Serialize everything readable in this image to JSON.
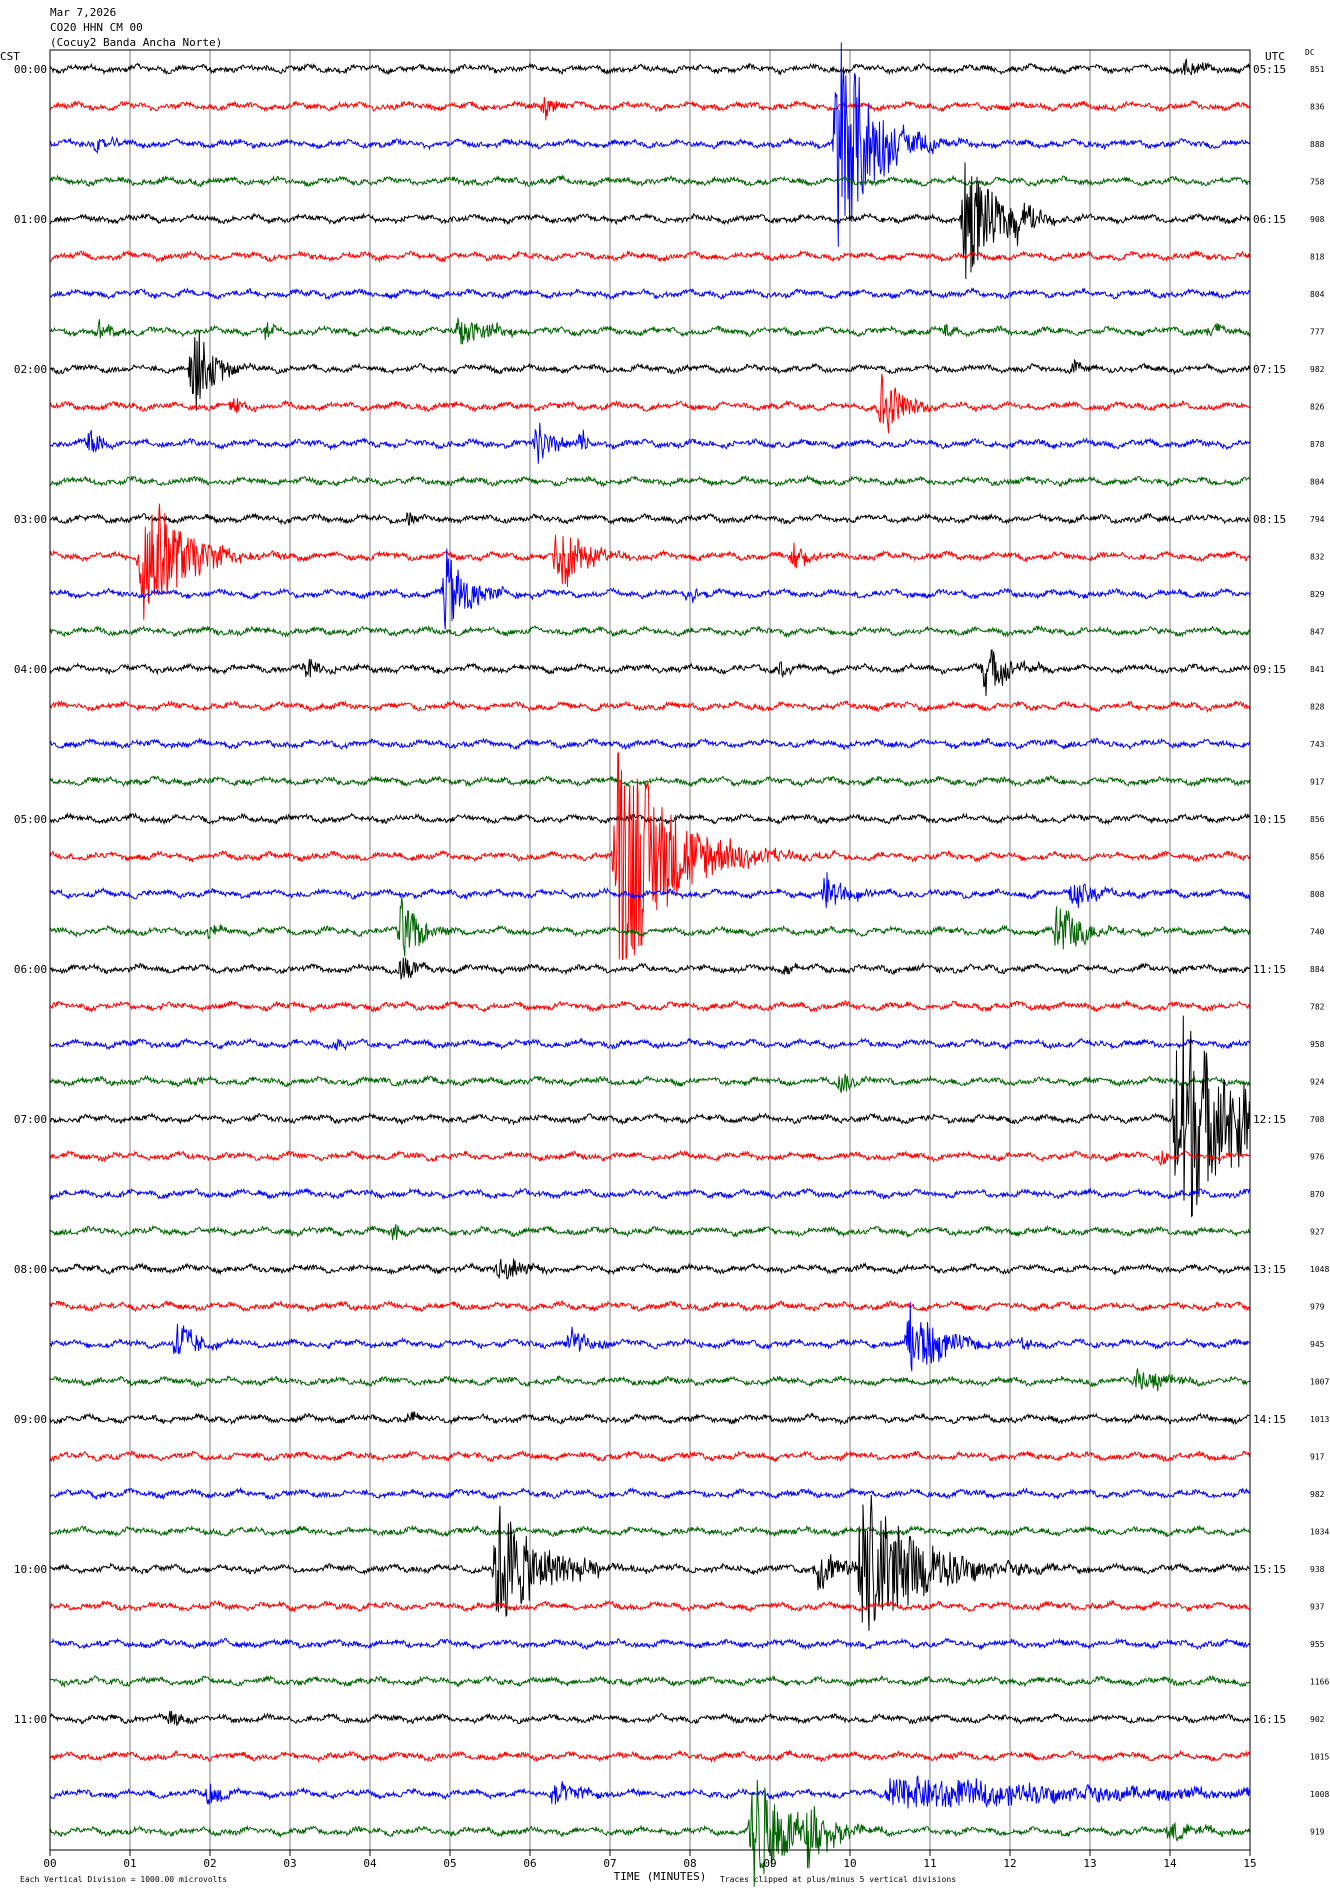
{
  "header": {
    "date": "Mar 7,2026",
    "station": "CO20 HHN CM 00",
    "network": "(Cocuy2 Banda Ancha Norte)"
  },
  "labels": {
    "left_timezone": "CST",
    "right_timezone": "UTC",
    "dc_header": "DC",
    "xlabel": "TIME (MINUTES)",
    "scale_note": "Each Vertical Division = 1000.00 microvolts",
    "clip_note": "Traces clipped at plus/minus 5 vertical divisions"
  },
  "colors": {
    "trace_cycle": [
      "#000000",
      "#ff0000",
      "#0000ff",
      "#006400"
    ],
    "grid": "#808080",
    "frame": "#000000"
  },
  "chart_data": {
    "type": "helicorder",
    "title": "Mar 7,2026 CO20 HHN CM 00 (Cocuy2 Banda Ancha Norte)",
    "xlabel": "TIME (MINUTES)",
    "xlim": [
      0,
      15
    ],
    "x_ticks": [
      "00",
      "01",
      "02",
      "03",
      "04",
      "05",
      "06",
      "07",
      "08",
      "09",
      "10",
      "11",
      "12",
      "13",
      "14",
      "15"
    ],
    "grid": true,
    "rows_per_hour": 4,
    "left_hour_labels": [
      "00:00",
      "01:00",
      "02:00",
      "03:00",
      "04:00",
      "05:00",
      "06:00",
      "07:00",
      "08:00",
      "09:00",
      "10:00",
      "11:00"
    ],
    "right_hour_labels": [
      "05:15",
      "06:15",
      "07:15",
      "08:15",
      "09:15",
      "10:15",
      "11:15",
      "12:15",
      "13:15",
      "14:15",
      "15:15",
      "16:15"
    ],
    "dc_values": [
      "851",
      "836",
      "888",
      "758",
      "908",
      "818",
      "804",
      "777",
      "982",
      "826",
      "878",
      "804",
      "794",
      "832",
      "829",
      "847",
      "841",
      "828",
      "743",
      "917",
      "856",
      "856",
      "808",
      "740",
      "884",
      "782",
      "958",
      "924",
      "708",
      "976",
      "870",
      "927",
      "1048",
      "979",
      "945",
      "1007",
      "1013",
      "917",
      "982",
      "1034",
      "938",
      "937",
      "955",
      "1166",
      "902",
      "1015",
      "1008",
      "919"
    ],
    "events": [
      {
        "row": 0,
        "minute": 14.2,
        "amp": 0.35,
        "dur": 0.3
      },
      {
        "row": 1,
        "minute": 6.2,
        "amp": 0.5,
        "dur": 0.25
      },
      {
        "row": 2,
        "minute": 9.85,
        "amp": 4.5,
        "dur": 0.7
      },
      {
        "row": 2,
        "minute": 10.6,
        "amp": 0.4,
        "dur": 0.3
      },
      {
        "row": 2,
        "minute": 0.6,
        "amp": 0.3,
        "dur": 0.3
      },
      {
        "row": 4,
        "minute": 11.45,
        "amp": 2.4,
        "dur": 0.6
      },
      {
        "row": 4,
        "minute": 12.1,
        "amp": 0.9,
        "dur": 0.3
      },
      {
        "row": 7,
        "minute": 0.6,
        "amp": 0.35,
        "dur": 0.3
      },
      {
        "row": 7,
        "minute": 2.7,
        "amp": 0.3,
        "dur": 0.2
      },
      {
        "row": 7,
        "minute": 5.1,
        "amp": 0.5,
        "dur": 0.8
      },
      {
        "row": 7,
        "minute": 11.2,
        "amp": 0.3,
        "dur": 0.2
      },
      {
        "row": 7,
        "minute": 14.5,
        "amp": 0.3,
        "dur": 0.3
      },
      {
        "row": 8,
        "minute": 1.8,
        "amp": 1.7,
        "dur": 0.4
      },
      {
        "row": 8,
        "minute": 12.8,
        "amp": 0.3,
        "dur": 0.2
      },
      {
        "row": 9,
        "minute": 10.4,
        "amp": 1.3,
        "dur": 0.4
      },
      {
        "row": 9,
        "minute": 2.3,
        "amp": 0.35,
        "dur": 0.2
      },
      {
        "row": 10,
        "minute": 0.5,
        "amp": 0.5,
        "dur": 0.3
      },
      {
        "row": 10,
        "minute": 6.1,
        "amp": 0.8,
        "dur": 0.4
      },
      {
        "row": 10,
        "minute": 6.65,
        "amp": 0.6,
        "dur": 0.1
      },
      {
        "row": 12,
        "minute": 4.5,
        "amp": 0.3,
        "dur": 0.2
      },
      {
        "row": 13,
        "minute": 1.15,
        "amp": 2.9,
        "dur": 0.8
      },
      {
        "row": 13,
        "minute": 6.35,
        "amp": 1.5,
        "dur": 0.5
      },
      {
        "row": 13,
        "minute": 9.3,
        "amp": 0.5,
        "dur": 0.4
      },
      {
        "row": 14,
        "minute": 4.95,
        "amp": 1.6,
        "dur": 0.5
      },
      {
        "row": 14,
        "minute": 8.0,
        "amp": 0.3,
        "dur": 0.2
      },
      {
        "row": 16,
        "minute": 3.2,
        "amp": 0.4,
        "dur": 0.3
      },
      {
        "row": 16,
        "minute": 9.1,
        "amp": 0.35,
        "dur": 0.2
      },
      {
        "row": 16,
        "minute": 11.7,
        "amp": 1.0,
        "dur": 0.5
      },
      {
        "row": 21,
        "minute": 7.1,
        "amp": 5.0,
        "dur": 1.1
      },
      {
        "row": 22,
        "minute": 9.7,
        "amp": 0.7,
        "dur": 0.4
      },
      {
        "row": 22,
        "minute": 12.8,
        "amp": 0.5,
        "dur": 0.6
      },
      {
        "row": 23,
        "minute": 4.4,
        "amp": 1.3,
        "dur": 0.4
      },
      {
        "row": 23,
        "minute": 12.6,
        "amp": 1.2,
        "dur": 0.5
      },
      {
        "row": 23,
        "minute": 2.0,
        "amp": 0.3,
        "dur": 0.2
      },
      {
        "row": 24,
        "minute": 4.4,
        "amp": 0.6,
        "dur": 0.3
      },
      {
        "row": 24,
        "minute": 9.2,
        "amp": 0.3,
        "dur": 0.2
      },
      {
        "row": 26,
        "minute": 3.6,
        "amp": 0.35,
        "dur": 0.2
      },
      {
        "row": 27,
        "minute": 9.9,
        "amp": 0.5,
        "dur": 0.2
      },
      {
        "row": 27,
        "minute": 1.8,
        "amp": 0.25,
        "dur": 0.2
      },
      {
        "row": 28,
        "minute": 14.1,
        "amp": 5.0,
        "dur": 0.9
      },
      {
        "row": 28,
        "minute": 14.8,
        "amp": 1.5,
        "dur": 0.3
      },
      {
        "row": 29,
        "minute": 13.9,
        "amp": 0.3,
        "dur": 0.2
      },
      {
        "row": 31,
        "minute": 4.3,
        "amp": 0.3,
        "dur": 0.2
      },
      {
        "row": 32,
        "minute": 5.6,
        "amp": 0.6,
        "dur": 0.5
      },
      {
        "row": 34,
        "minute": 1.6,
        "amp": 0.9,
        "dur": 0.4
      },
      {
        "row": 34,
        "minute": 6.5,
        "amp": 0.6,
        "dur": 0.4
      },
      {
        "row": 34,
        "minute": 10.75,
        "amp": 1.5,
        "dur": 0.6
      },
      {
        "row": 34,
        "minute": 12.2,
        "amp": 0.3,
        "dur": 0.2
      },
      {
        "row": 35,
        "minute": 13.6,
        "amp": 0.6,
        "dur": 0.5
      },
      {
        "row": 36,
        "minute": 4.5,
        "amp": 0.3,
        "dur": 0.3
      },
      {
        "row": 40,
        "minute": 5.6,
        "amp": 2.4,
        "dur": 0.9
      },
      {
        "row": 40,
        "minute": 6.5,
        "amp": 0.4,
        "dur": 0.3
      },
      {
        "row": 40,
        "minute": 9.6,
        "amp": 0.8,
        "dur": 0.6
      },
      {
        "row": 40,
        "minute": 10.15,
        "amp": 3.0,
        "dur": 1.2
      },
      {
        "row": 44,
        "minute": 1.5,
        "amp": 0.35,
        "dur": 0.3
      },
      {
        "row": 46,
        "minute": 2.0,
        "amp": 0.5,
        "dur": 0.3
      },
      {
        "row": 46,
        "minute": 6.3,
        "amp": 0.5,
        "dur": 0.6
      },
      {
        "row": 46,
        "minute": 10.5,
        "amp": 0.6,
        "dur": 4.6
      },
      {
        "row": 47,
        "minute": 8.8,
        "amp": 2.2,
        "dur": 0.8
      },
      {
        "row": 47,
        "minute": 9.45,
        "amp": 1.5,
        "dur": 0.4
      },
      {
        "row": 47,
        "minute": 14.0,
        "amp": 0.4,
        "dur": 0.6
      }
    ]
  }
}
